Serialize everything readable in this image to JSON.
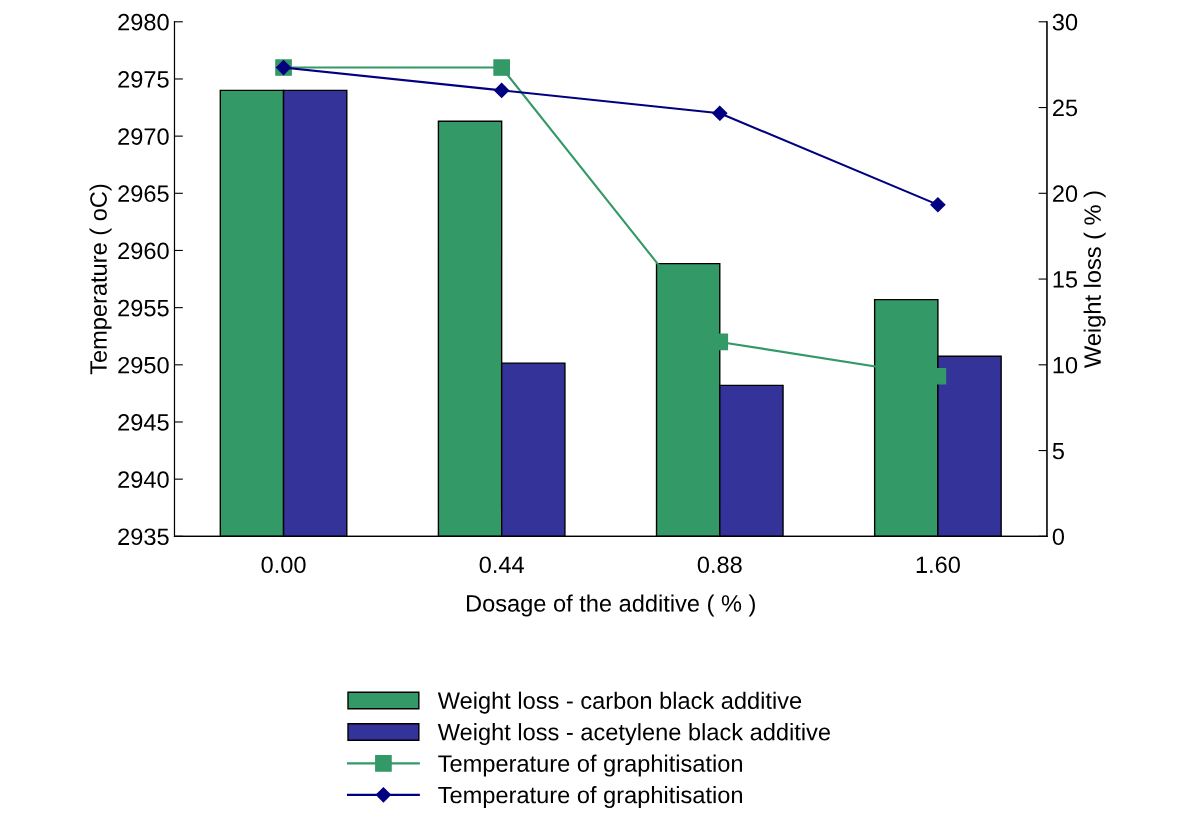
{
  "chart_data": {
    "type": "bar",
    "xlabel": "Dosage of the additive ( % )",
    "ylabel": "Temperature ( oC)",
    "y2label": "Weight loss ( % )",
    "categories": [
      "0.00",
      "0.44",
      "0.88",
      "1.60"
    ],
    "series": [
      {
        "name": "Weight loss - carbon black additive",
        "axis": "y2",
        "color": "#339966",
        "values": [
          26.0,
          24.2,
          15.9,
          13.8
        ]
      },
      {
        "name": "Weight loss - acetylene black additive",
        "axis": "y2",
        "color": "#333399",
        "values": [
          26.0,
          10.1,
          8.8,
          10.5
        ]
      },
      {
        "name": "Temperature of graphitisation",
        "type": "line",
        "axis": "y",
        "color": "#339966",
        "marker": "square",
        "values": [
          2976,
          2976,
          2952,
          2949
        ]
      },
      {
        "name": "Temperature of graphitisation",
        "type": "line",
        "axis": "y",
        "color": "#000080",
        "marker": "diamond",
        "values": [
          2976,
          2974,
          2972,
          2964
        ]
      }
    ],
    "ylim": [
      2935,
      2980
    ],
    "yticks": [
      2935,
      2940,
      2945,
      2950,
      2955,
      2960,
      2965,
      2970,
      2975,
      2980
    ],
    "y2lim": [
      0,
      30
    ],
    "y2ticks": [
      0,
      5,
      10,
      15,
      20,
      25,
      30
    ],
    "grid": false,
    "legend": "bottom"
  }
}
